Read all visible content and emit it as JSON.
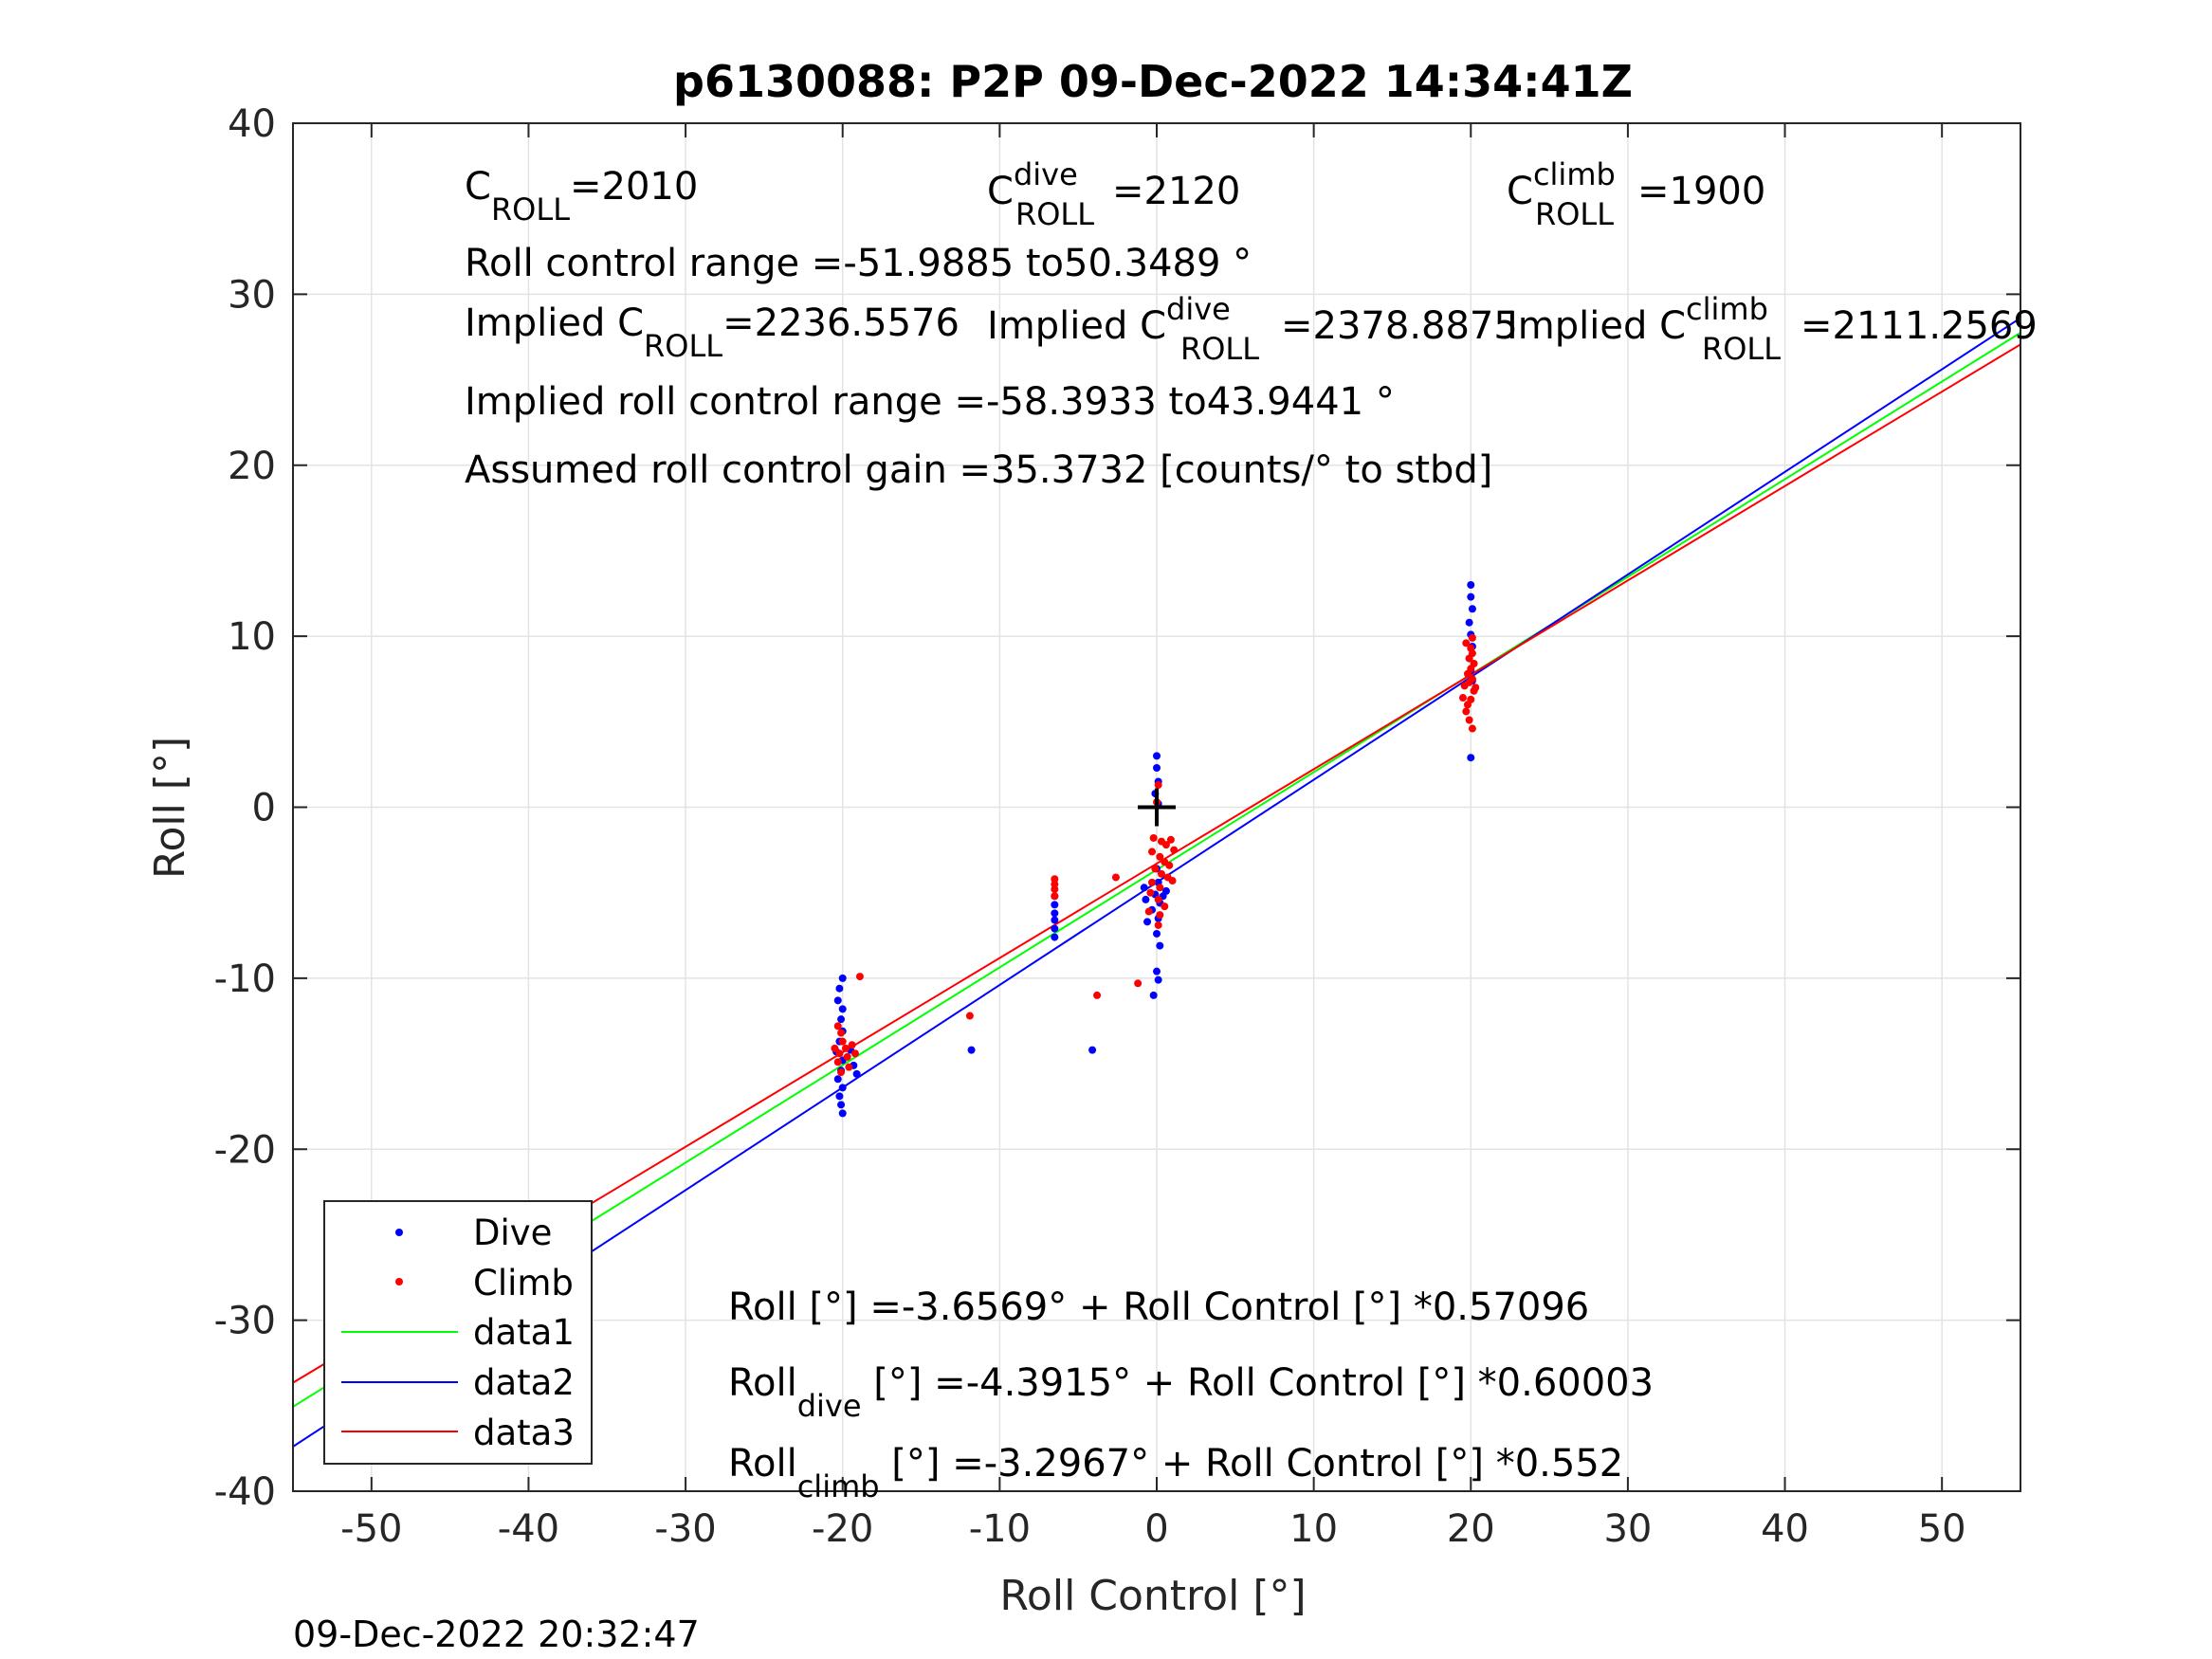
{
  "chart_data": {
    "type": "scatter",
    "title": "p6130088: P2P 09-Dec-2022 14:34:41Z",
    "xlabel": "Roll Control [°]",
    "ylabel": "Roll [°]",
    "xlim": [
      -55,
      55
    ],
    "ylim": [
      -40,
      40
    ],
    "xticks": [
      -50,
      -40,
      -30,
      -20,
      -10,
      0,
      10,
      20,
      30,
      40,
      50
    ],
    "yticks": [
      -40,
      -30,
      -20,
      -10,
      0,
      10,
      20,
      30,
      40
    ],
    "grid": true,
    "legend_position": "bottom-left",
    "legend": [
      "Dive",
      "Climb",
      "data1",
      "data2",
      "data3"
    ],
    "series": [
      {
        "name": "Dive",
        "kind": "points",
        "color": "#0000ff",
        "points": [
          [
            -20,
            -10.0
          ],
          [
            -20.2,
            -10.6
          ],
          [
            -20.3,
            -11.3
          ],
          [
            -20,
            -11.8
          ],
          [
            -20.1,
            -12.4
          ],
          [
            -20,
            -13.1
          ],
          [
            -20.2,
            -13.7
          ],
          [
            -20.4,
            -14.3
          ],
          [
            -20,
            -14.8
          ],
          [
            -20.1,
            -15.4
          ],
          [
            -20.3,
            -15.9
          ],
          [
            -20,
            -16.4
          ],
          [
            -20.2,
            -16.9
          ],
          [
            -20.1,
            -17.4
          ],
          [
            -20,
            -17.9
          ],
          [
            -19.3,
            -15.1
          ],
          [
            -19.1,
            -15.6
          ],
          [
            -19.5,
            -14.2
          ],
          [
            -11.8,
            -14.2
          ],
          [
            -6.5,
            -5.2
          ],
          [
            -6.5,
            -5.7
          ],
          [
            -6.5,
            -6.2
          ],
          [
            -6.5,
            -6.6
          ],
          [
            -6.5,
            -7.1
          ],
          [
            -6.5,
            -7.6
          ],
          [
            -4.1,
            -14.2
          ],
          [
            0,
            3.0
          ],
          [
            0,
            2.3
          ],
          [
            0.1,
            1.5
          ],
          [
            -0.1,
            0.8
          ],
          [
            0.1,
            0.2
          ],
          [
            0,
            -3.6
          ],
          [
            0.1,
            -4.4
          ],
          [
            -0.1,
            -5.1
          ],
          [
            0.2,
            -5.6
          ],
          [
            -0.3,
            -6.0
          ],
          [
            0.1,
            -6.5
          ],
          [
            0,
            -7.4
          ],
          [
            0.2,
            -8.1
          ],
          [
            0,
            -9.6
          ],
          [
            0.1,
            -10.1
          ],
          [
            -0.2,
            -11.0
          ],
          [
            -0.8,
            -4.7
          ],
          [
            -0.7,
            -5.4
          ],
          [
            -0.6,
            -6.7
          ],
          [
            0.4,
            -5.2
          ],
          [
            0.6,
            -4.9
          ],
          [
            20,
            13.0
          ],
          [
            20,
            12.3
          ],
          [
            20.1,
            11.6
          ],
          [
            19.9,
            10.8
          ],
          [
            20,
            10.1
          ],
          [
            20.1,
            9.4
          ],
          [
            19.9,
            8.7
          ],
          [
            20,
            8.0
          ],
          [
            20.1,
            7.4
          ],
          [
            20,
            2.9
          ]
        ]
      },
      {
        "name": "Climb",
        "kind": "points",
        "color": "#ff0000",
        "points": [
          [
            -18.9,
            -9.9
          ],
          [
            -20.3,
            -12.8
          ],
          [
            -20.1,
            -13.2
          ],
          [
            -20,
            -13.7
          ],
          [
            -19.8,
            -14.1
          ],
          [
            -20.2,
            -14.4
          ],
          [
            -19.7,
            -14.6
          ],
          [
            -20.3,
            -14.9
          ],
          [
            -19.6,
            -15.2
          ],
          [
            -20.1,
            -15.5
          ],
          [
            -19.4,
            -13.9
          ],
          [
            -19.2,
            -14.4
          ],
          [
            -20.5,
            -14.1
          ],
          [
            -11.9,
            -12.2
          ],
          [
            -6.5,
            -4.2
          ],
          [
            -6.5,
            -4.5
          ],
          [
            -6.5,
            -4.8
          ],
          [
            -6.5,
            -5.2
          ],
          [
            -3.8,
            -11.0
          ],
          [
            -2.6,
            -4.1
          ],
          [
            -1.2,
            -10.3
          ],
          [
            -0.5,
            -6.1
          ],
          [
            0.1,
            1.3
          ],
          [
            0,
            0.3
          ],
          [
            -0.2,
            -1.8
          ],
          [
            0.3,
            -2.0
          ],
          [
            0.6,
            -2.2
          ],
          [
            0.9,
            -1.9
          ],
          [
            1.1,
            -2.5
          ],
          [
            -0.3,
            -2.6
          ],
          [
            0.2,
            -2.9
          ],
          [
            0.5,
            -3.2
          ],
          [
            0.8,
            -3.4
          ],
          [
            -0.1,
            -3.6
          ],
          [
            0.3,
            -3.9
          ],
          [
            0.7,
            -4.1
          ],
          [
            1.0,
            -4.3
          ],
          [
            -0.3,
            -4.4
          ],
          [
            0.2,
            -4.7
          ],
          [
            -0.4,
            -5.0
          ],
          [
            0.1,
            -5.4
          ],
          [
            0.5,
            -5.8
          ],
          [
            0.2,
            -6.3
          ],
          [
            0.1,
            -6.9
          ],
          [
            19.5,
            6.4
          ],
          [
            19.7,
            5.6
          ],
          [
            19.9,
            5.1
          ],
          [
            20.1,
            4.6
          ],
          [
            19.8,
            6.0
          ],
          [
            20.2,
            6.8
          ],
          [
            19.6,
            7.1
          ],
          [
            20.1,
            7.5
          ],
          [
            19.8,
            7.8
          ],
          [
            20,
            8.1
          ],
          [
            20.2,
            8.4
          ],
          [
            19.9,
            8.7
          ],
          [
            20.1,
            9.0
          ],
          [
            20,
            9.3
          ],
          [
            19.7,
            9.6
          ],
          [
            20.1,
            9.9
          ],
          [
            20,
            6.3
          ],
          [
            19.9,
            7.3
          ],
          [
            20.3,
            7.0
          ]
        ]
      },
      {
        "name": "data1",
        "kind": "line",
        "color": "#00ff00",
        "intercept": -3.6569,
        "slope": 0.57096
      },
      {
        "name": "data2",
        "kind": "line",
        "color": "#0000ff",
        "intercept": -4.3915,
        "slope": 0.60003
      },
      {
        "name": "data3",
        "kind": "line",
        "color": "#ff0000",
        "intercept": -3.2967,
        "slope": 0.552
      }
    ],
    "marker": {
      "x": 0,
      "y": 0,
      "symbol": "+",
      "color": "#000000"
    },
    "annotations": {
      "c_roll": {
        "main": "C",
        "sub": "ROLL",
        "value": "=2010"
      },
      "c_roll_dive": {
        "main": "C",
        "sup": "dive",
        "sub": "ROLL",
        "value": "=2120"
      },
      "c_roll_climb": {
        "main": "C",
        "sup": "climb",
        "sub": "ROLL",
        "value": "=1900"
      },
      "roll_control_range": "Roll control range =-51.9885 to50.3489 °",
      "implied_c_roll": {
        "main": "Implied C",
        "sub": "ROLL",
        "value": "=2236.5576"
      },
      "implied_c_roll_dive": {
        "main": "Implied C",
        "sup": "dive",
        "sub": "ROLL",
        "value": "=2378.8875"
      },
      "implied_c_roll_climb": {
        "main": "Implied C",
        "sup": "climb",
        "sub": "ROLL",
        "value": "=2111.2569"
      },
      "implied_range": "Implied roll control range =-58.3933 to43.9441 °",
      "gain": "Assumed roll control gain =35.3732 [counts/° to stbd]",
      "fit_all": "Roll [°] =-3.6569° + Roll Control [°] *0.57096",
      "fit_dive": {
        "main": "Roll",
        "sub": "dive",
        "rest": " [°] =-4.3915° + Roll Control [°] *0.60003"
      },
      "fit_climb": {
        "main": "Roll",
        "sub": "climb",
        "rest": " [°] =-3.2967° + Roll Control [°] *0.552"
      }
    }
  },
  "footer_timestamp": "09-Dec-2022 20:32:47"
}
